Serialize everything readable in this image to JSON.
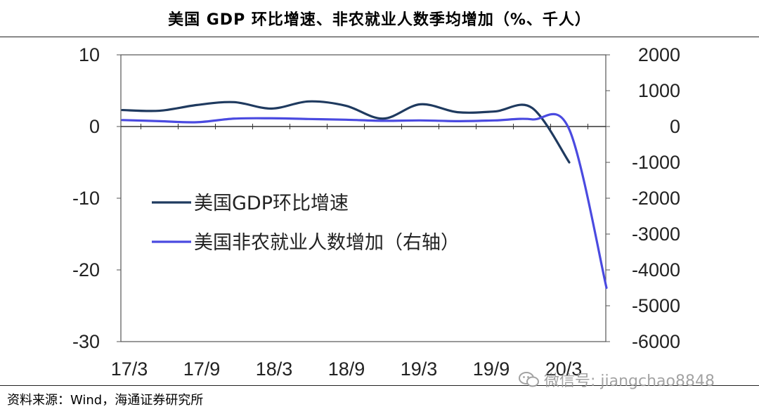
{
  "title": "美国 GDP 环比增速、非农就业人数季均增加（%、千人）",
  "source": "资料来源：Wind，海通证券研究所",
  "watermark": "微信号: jiangchao8848",
  "watermark_icon": "wechat-icon",
  "chart_data": {
    "type": "line",
    "title": "美国 GDP 环比增速、非农就业人数季均增加（%、千人）",
    "x_ticks": [
      "17/3",
      "17/9",
      "18/3",
      "18/9",
      "19/3",
      "19/9",
      "20/3"
    ],
    "x": [
      "17/3",
      "17/6",
      "17/9",
      "17/12",
      "18/3",
      "18/6",
      "18/9",
      "18/12",
      "19/3",
      "19/6",
      "19/9",
      "19/12",
      "20/3",
      "20/6"
    ],
    "left_axis": {
      "ylim": [
        -30,
        10
      ],
      "ticks": [
        "10",
        "0",
        "-10",
        "-20",
        "-30"
      ]
    },
    "right_axis": {
      "ylim": [
        -6000,
        2000
      ],
      "ticks": [
        "2000",
        "1000",
        "0",
        "-1000",
        "-2000",
        "-3000",
        "-4000",
        "-5000",
        "-6000"
      ]
    },
    "legend_position": "center-left",
    "grid": false,
    "series": [
      {
        "name": "美国GDP环比增速",
        "axis": "left",
        "color": "#1f3a5f",
        "values": [
          2.3,
          2.2,
          3.0,
          3.4,
          2.5,
          3.5,
          2.9,
          1.1,
          3.1,
          2.0,
          2.1,
          2.6,
          -5.0,
          null
        ]
      },
      {
        "name": "美国非农就业人数增加（右轴）",
        "axis": "right",
        "color": "#4a4ae0",
        "values": [
          180,
          150,
          120,
          220,
          230,
          210,
          190,
          160,
          170,
          150,
          170,
          200,
          -80,
          -4500
        ]
      }
    ]
  }
}
